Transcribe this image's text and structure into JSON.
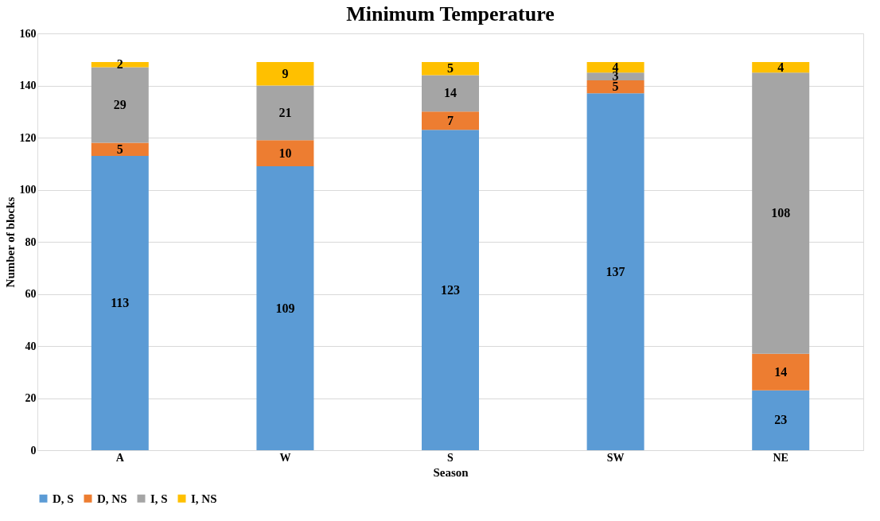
{
  "chart_data": {
    "type": "bar",
    "title": "Minimum Temperature",
    "xlabel": "Season",
    "ylabel": "Number of blocks",
    "categories": [
      "A",
      "W",
      "S",
      "SW",
      "NE"
    ],
    "series": [
      {
        "name": "D, S",
        "color": "#5b9bd5",
        "values": [
          113,
          109,
          123,
          137,
          23
        ]
      },
      {
        "name": "D, NS",
        "color": "#ed7d31",
        "values": [
          5,
          10,
          7,
          5,
          14
        ]
      },
      {
        "name": "I, S",
        "color": "#a5a5a5",
        "values": [
          29,
          21,
          14,
          3,
          108
        ]
      },
      {
        "name": "I, NS",
        "color": "#ffc000",
        "values": [
          2,
          9,
          5,
          4,
          4
        ]
      }
    ],
    "stacked": true,
    "data_labels": true,
    "ylim": [
      0,
      160
    ],
    "yticks": [
      0,
      20,
      40,
      60,
      80,
      100,
      120,
      140,
      160
    ],
    "grid": "y",
    "legend": "bottom"
  }
}
